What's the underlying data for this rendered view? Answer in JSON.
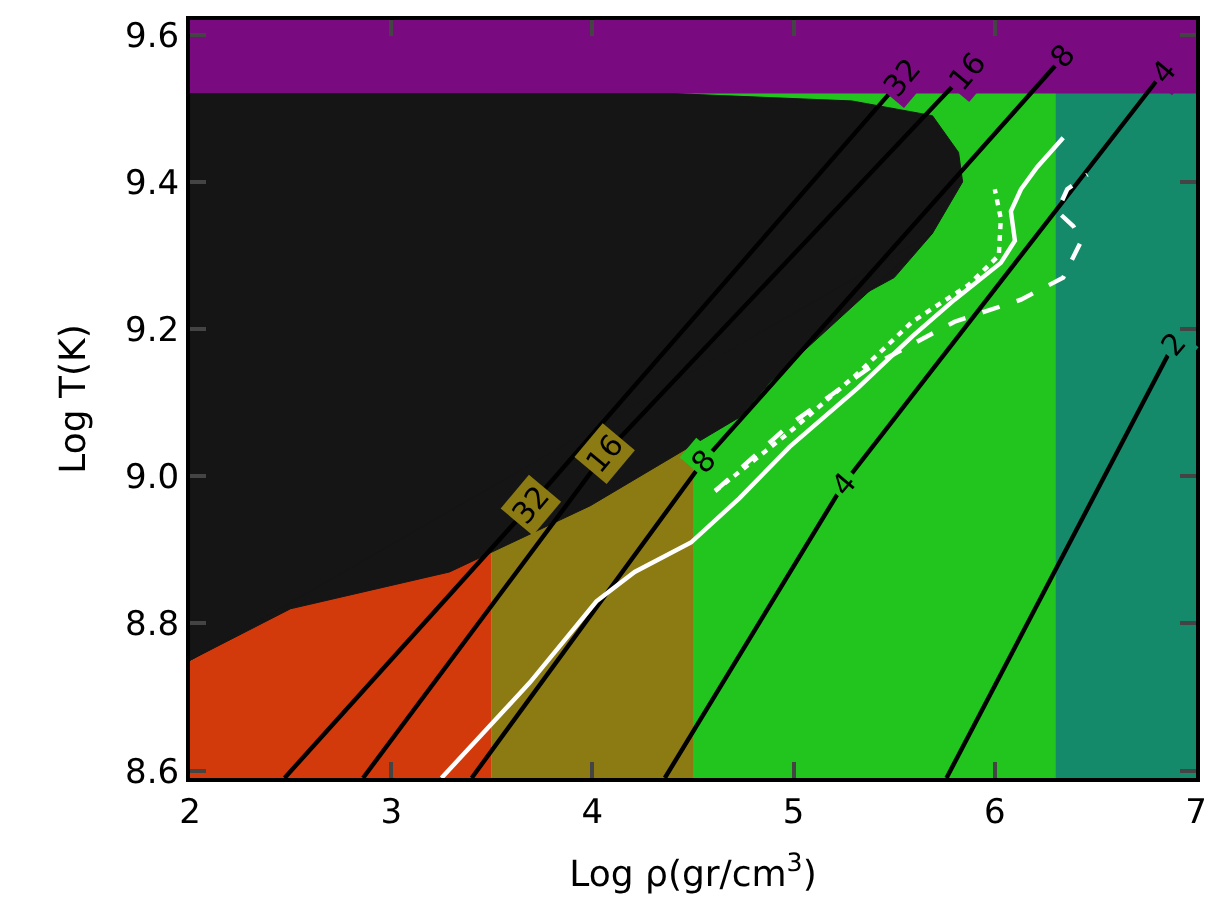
{
  "chart_data": {
    "type": "line",
    "xlabel": "Log ρ(gr/cm$^{3}$)",
    "ylabel": "Log T(K)",
    "xlim": [
      2,
      7
    ],
    "ylim": [
      8.59,
      9.62
    ],
    "xticks": [
      2,
      3,
      4,
      5,
      6,
      7
    ],
    "yticks": [
      8.6,
      8.8,
      {
        "value": 9,
        "label": "9.0"
      },
      9.2,
      9.4,
      9.6
    ],
    "grid": false,
    "bands": [
      {
        "axis": "x",
        "from": 2,
        "to": 3.5,
        "color": "#d23a0c"
      },
      {
        "axis": "x",
        "from": 3.5,
        "to": 4.5,
        "color": "#8c7a12"
      },
      {
        "axis": "x",
        "from": 4.5,
        "to": 6.3,
        "color": "#22c41e"
      },
      {
        "axis": "x",
        "from": 6.3,
        "to": 7,
        "color": "#158a6a"
      },
      {
        "axis": "y",
        "from": 9.52,
        "to": 9.62,
        "color": "#7a0a80"
      }
    ],
    "series": [
      {
        "type": "area",
        "color": "#151515",
        "x": [
          2,
          4.4,
          5.29,
          5.69,
          5.82,
          5.84,
          5.69,
          5.5,
          2,
          2
        ],
        "values": [
          9.52,
          9.52,
          9.51,
          9.49,
          9.44,
          9.4,
          9.33,
          9.27,
          8.75,
          9.52
        ]
      },
      {
        "type": "area",
        "color": "#151515",
        "x": [
          2,
          2.5,
          3.29,
          3.99,
          4.73,
          4.89,
          5.29,
          5.69,
          2
        ],
        "values": [
          8.75,
          8.82,
          8.87,
          8.96,
          9.08,
          9.13,
          9.23,
          9.33,
          8.75
        ]
      },
      {
        "color": "#000000",
        "line_style": "solid",
        "x": [
          2.47,
          3.69,
          5.54
        ],
        "values": [
          8.59,
          8.96,
          9.54
        ]
      },
      {
        "color": "#000000",
        "line_style": "solid",
        "x": [
          2.86,
          4.06,
          5.86
        ],
        "values": [
          8.59,
          9.03,
          9.55
        ]
      },
      {
        "color": "#000000",
        "line_style": "solid",
        "x": [
          3.4,
          4.55,
          6.34
        ],
        "values": [
          8.59,
          9.02,
          9.57
        ]
      },
      {
        "color": "#000000",
        "line_style": "solid",
        "x": [
          4.36,
          5.25,
          6.84
        ],
        "values": [
          8.59,
          8.99,
          9.55
        ]
      },
      {
        "color": "#000000",
        "line_style": "solid",
        "x": [
          5.76,
          6.89
        ],
        "values": [
          8.59,
          9.18
        ]
      },
      {
        "color": "#ffffff",
        "line_style": "solid",
        "x": [
          3.25,
          3.69,
          4.02,
          4.21,
          4.49,
          4.73,
          4.98,
          5.32,
          5.59,
          5.8,
          6.03,
          6.1,
          6.08,
          6.13,
          6.21,
          6.34
        ],
        "values": [
          8.59,
          8.72,
          8.83,
          8.87,
          8.91,
          8.97,
          9.04,
          9.12,
          9.19,
          9.24,
          9.29,
          9.32,
          9.36,
          9.39,
          9.42,
          9.46
        ]
      },
      {
        "color": "#ffffff",
        "line_style": "dashed",
        "x": [
          4.61,
          4.98,
          5.39,
          5.8,
          6.13,
          6.34,
          6.43,
          6.39,
          6.31,
          6.36,
          6.46
        ],
        "values": [
          8.98,
          9.07,
          9.15,
          9.21,
          9.24,
          9.27,
          9.32,
          9.34,
          9.36,
          9.39,
          9.41
        ]
      },
      {
        "color": "#ffffff",
        "line_style": "dotted",
        "x": [
          4.61,
          4.98,
          5.32,
          5.59,
          5.87,
          6.02,
          6.03,
          6.0
        ],
        "values": [
          8.98,
          9.06,
          9.14,
          9.21,
          9.26,
          9.3,
          9.35,
          9.39
        ]
      }
    ],
    "annotations": [
      {
        "text": "32",
        "x": 3.69,
        "y": 8.96
      },
      {
        "text": "16",
        "x": 4.06,
        "y": 9.03
      },
      {
        "text": "8",
        "x": 4.55,
        "y": 9.02
      },
      {
        "text": "4",
        "x": 5.25,
        "y": 8.99
      },
      {
        "text": "32",
        "x": 5.54,
        "y": 9.54
      },
      {
        "text": "16",
        "x": 5.86,
        "y": 9.55
      },
      {
        "text": "8",
        "x": 6.34,
        "y": 9.57
      },
      {
        "text": "4",
        "x": 6.84,
        "y": 9.55
      },
      {
        "text": "2",
        "x": 6.89,
        "y": 9.18
      }
    ]
  }
}
